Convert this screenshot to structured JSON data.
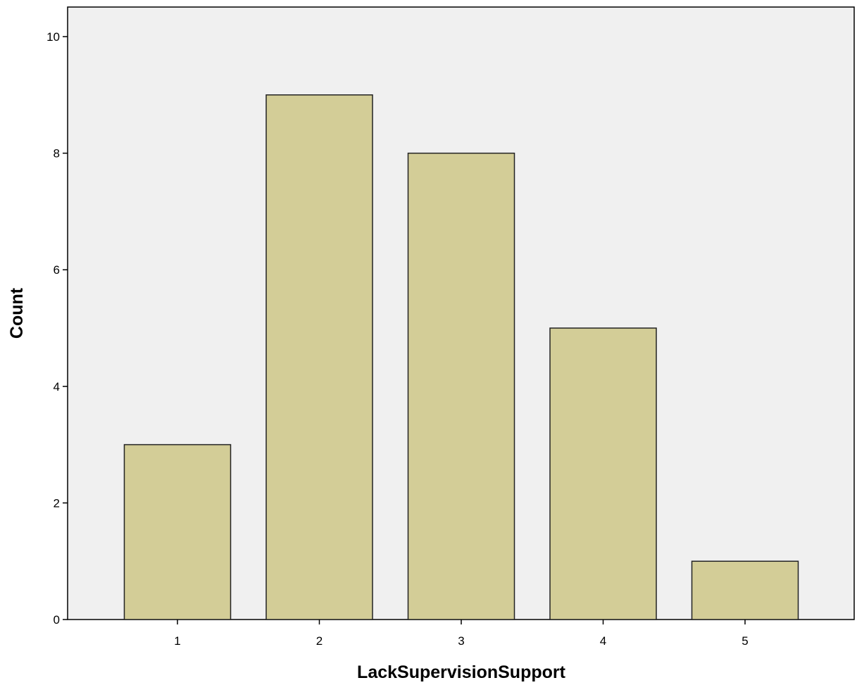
{
  "chart_data": {
    "type": "bar",
    "categories": [
      "1",
      "2",
      "3",
      "4",
      "5"
    ],
    "values": [
      3,
      9,
      8,
      5,
      1
    ],
    "title": "",
    "xlabel": "LackSupervisionSupport",
    "ylabel": "Count",
    "ylim": [
      0,
      10
    ],
    "yticks": [
      0,
      2,
      4,
      6,
      8,
      10
    ],
    "grid": false,
    "colors": {
      "bar_fill": "#d3cd97",
      "bar_stroke": "#222222",
      "plot_background": "#f0f0f0",
      "axis": "#000000"
    }
  }
}
